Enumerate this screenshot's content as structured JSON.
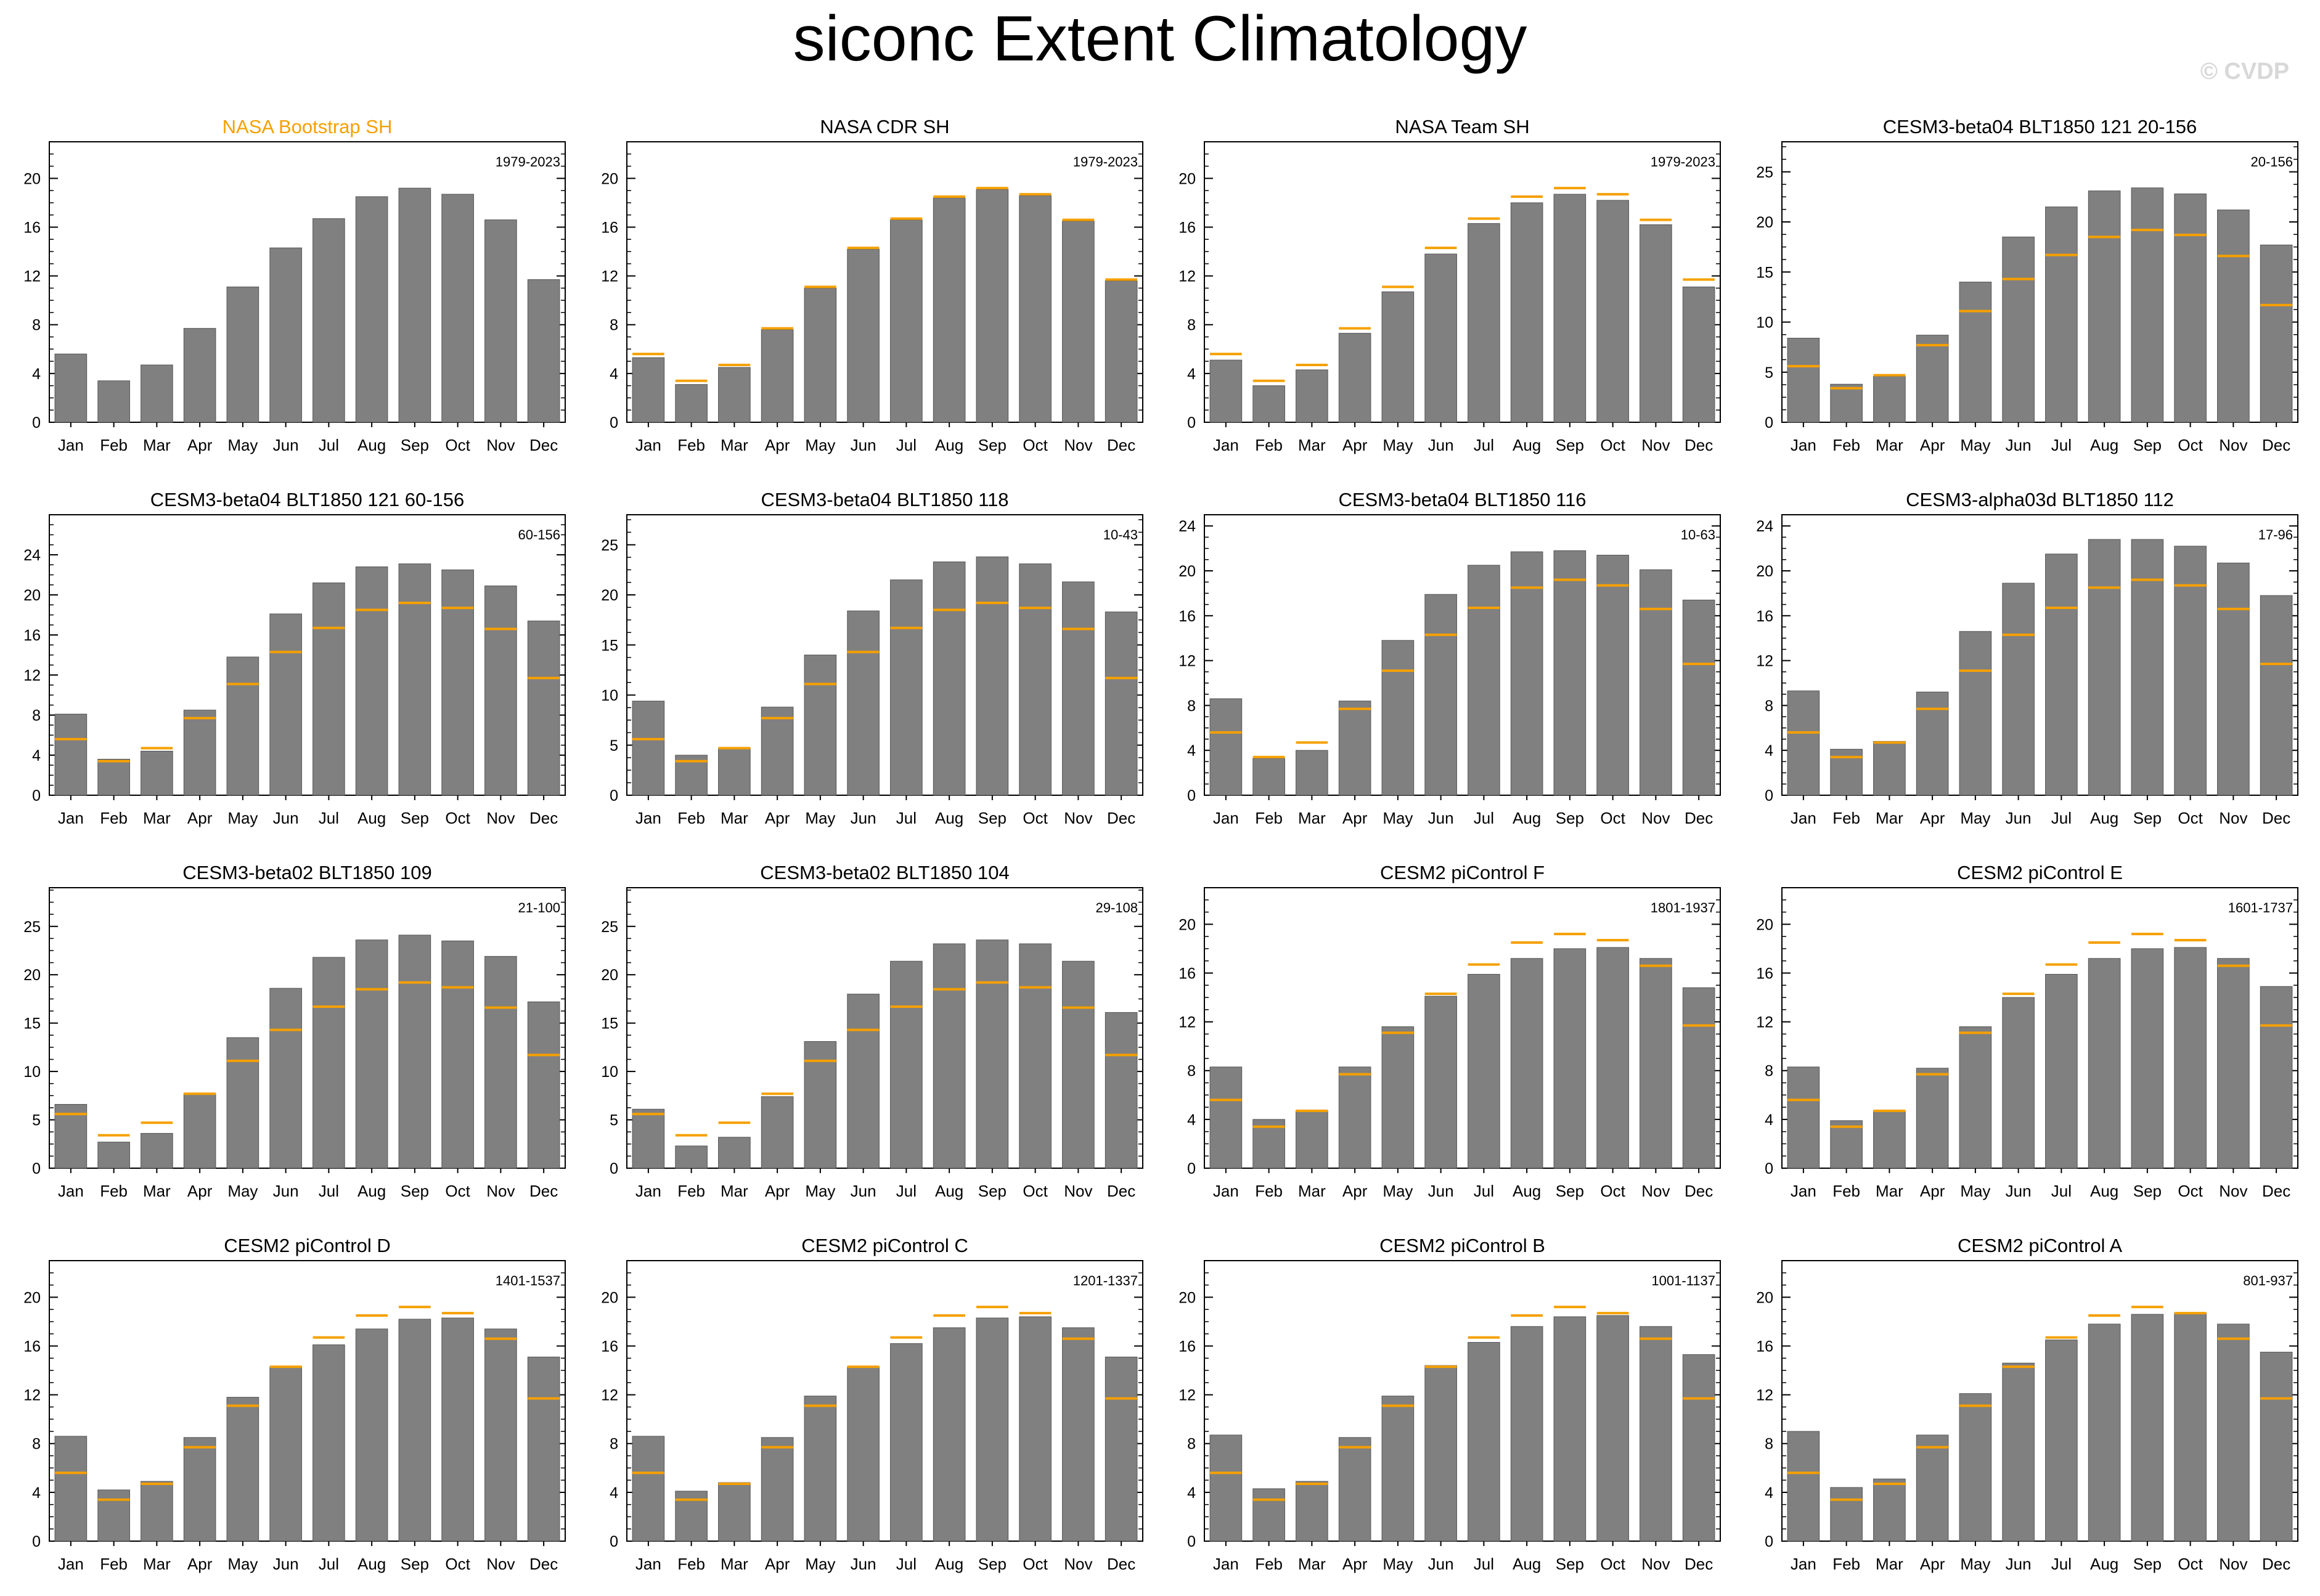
{
  "page": {
    "title": "siconc Extent Climatology",
    "watermark": "© CVDP"
  },
  "colors": {
    "bar": "#808080",
    "bar_edge": "#555555",
    "obs_line": "#f5a000",
    "obs_title": "#f5a000",
    "text": "#000000",
    "watermark": "#d8d8d8",
    "axis": "#000000"
  },
  "months": [
    "Jan",
    "Feb",
    "Mar",
    "Apr",
    "May",
    "Jun",
    "Jul",
    "Aug",
    "Sep",
    "Oct",
    "Nov",
    "Dec"
  ],
  "chart_data": [
    {
      "type": "bar",
      "title": "NASA Bootstrap SH",
      "title_color": "#f5a000",
      "years": "1979-2023",
      "categories": [
        "Jan",
        "Feb",
        "Mar",
        "Apr",
        "May",
        "Jun",
        "Jul",
        "Aug",
        "Sep",
        "Oct",
        "Nov",
        "Dec"
      ],
      "values": [
        5.6,
        3.4,
        4.7,
        7.7,
        11.1,
        14.3,
        16.7,
        18.5,
        19.2,
        18.7,
        16.6,
        11.7
      ],
      "reference": null,
      "ylim": [
        0,
        23
      ],
      "yticks": [
        0,
        4,
        8,
        12,
        16,
        20
      ]
    },
    {
      "type": "bar",
      "title": "NASA CDR SH",
      "years": "1979-2023",
      "categories": [
        "Jan",
        "Feb",
        "Mar",
        "Apr",
        "May",
        "Jun",
        "Jul",
        "Aug",
        "Sep",
        "Oct",
        "Nov",
        "Dec"
      ],
      "values": [
        5.3,
        3.1,
        4.5,
        7.6,
        11.0,
        14.2,
        16.6,
        18.4,
        19.1,
        18.6,
        16.5,
        11.6
      ],
      "reference": [
        5.6,
        3.4,
        4.7,
        7.7,
        11.1,
        14.3,
        16.7,
        18.5,
        19.2,
        18.7,
        16.6,
        11.7
      ],
      "ylim": [
        0,
        23
      ],
      "yticks": [
        0,
        4,
        8,
        12,
        16,
        20
      ]
    },
    {
      "type": "bar",
      "title": "NASA Team SH",
      "years": "1979-2023",
      "categories": [
        "Jan",
        "Feb",
        "Mar",
        "Apr",
        "May",
        "Jun",
        "Jul",
        "Aug",
        "Sep",
        "Oct",
        "Nov",
        "Dec"
      ],
      "values": [
        5.1,
        3.0,
        4.3,
        7.3,
        10.7,
        13.8,
        16.3,
        18.0,
        18.7,
        18.2,
        16.2,
        11.1
      ],
      "reference": [
        5.6,
        3.4,
        4.7,
        7.7,
        11.1,
        14.3,
        16.7,
        18.5,
        19.2,
        18.7,
        16.6,
        11.7
      ],
      "ylim": [
        0,
        23
      ],
      "yticks": [
        0,
        4,
        8,
        12,
        16,
        20
      ]
    },
    {
      "type": "bar",
      "title": "CESM3-beta04 BLT1850 121 20-156",
      "years": "20-156",
      "categories": [
        "Jan",
        "Feb",
        "Mar",
        "Apr",
        "May",
        "Jun",
        "Jul",
        "Aug",
        "Sep",
        "Oct",
        "Nov",
        "Dec"
      ],
      "values": [
        8.4,
        3.8,
        4.6,
        8.7,
        14.0,
        18.5,
        21.5,
        23.1,
        23.4,
        22.8,
        21.2,
        17.7
      ],
      "reference": [
        5.6,
        3.4,
        4.7,
        7.7,
        11.1,
        14.3,
        16.7,
        18.5,
        19.2,
        18.7,
        16.6,
        11.7
      ],
      "ylim": [
        0,
        28
      ],
      "yticks": [
        0,
        5,
        10,
        15,
        20,
        25
      ]
    },
    {
      "type": "bar",
      "title": "CESM3-beta04 BLT1850 121 60-156",
      "years": "60-156",
      "categories": [
        "Jan",
        "Feb",
        "Mar",
        "Apr",
        "May",
        "Jun",
        "Jul",
        "Aug",
        "Sep",
        "Oct",
        "Nov",
        "Dec"
      ],
      "values": [
        8.1,
        3.6,
        4.4,
        8.5,
        13.8,
        18.1,
        21.2,
        22.8,
        23.1,
        22.5,
        20.9,
        17.4
      ],
      "reference": [
        5.6,
        3.4,
        4.7,
        7.7,
        11.1,
        14.3,
        16.7,
        18.5,
        19.2,
        18.7,
        16.6,
        11.7
      ],
      "ylim": [
        0,
        28
      ],
      "yticks": [
        0,
        4,
        8,
        12,
        16,
        20,
        24
      ]
    },
    {
      "type": "bar",
      "title": "CESM3-beta04 BLT1850 118",
      "years": "10-43",
      "categories": [
        "Jan",
        "Feb",
        "Mar",
        "Apr",
        "May",
        "Jun",
        "Jul",
        "Aug",
        "Sep",
        "Oct",
        "Nov",
        "Dec"
      ],
      "values": [
        9.4,
        4.0,
        4.7,
        8.8,
        14.0,
        18.4,
        21.5,
        23.3,
        23.8,
        23.1,
        21.3,
        18.3
      ],
      "reference": [
        5.6,
        3.4,
        4.7,
        7.7,
        11.1,
        14.3,
        16.7,
        18.5,
        19.2,
        18.7,
        16.6,
        11.7
      ],
      "ylim": [
        0,
        28
      ],
      "yticks": [
        0,
        5,
        10,
        15,
        20,
        25
      ]
    },
    {
      "type": "bar",
      "title": "CESM3-beta04 BLT1850 116",
      "years": "10-63",
      "categories": [
        "Jan",
        "Feb",
        "Mar",
        "Apr",
        "May",
        "Jun",
        "Jul",
        "Aug",
        "Sep",
        "Oct",
        "Nov",
        "Dec"
      ],
      "values": [
        8.6,
        3.3,
        4.0,
        8.4,
        13.8,
        17.9,
        20.5,
        21.7,
        21.8,
        21.4,
        20.1,
        17.4
      ],
      "reference": [
        5.6,
        3.4,
        4.7,
        7.7,
        11.1,
        14.3,
        16.7,
        18.5,
        19.2,
        18.7,
        16.6,
        11.7
      ],
      "ylim": [
        0,
        25
      ],
      "yticks": [
        0,
        4,
        8,
        12,
        16,
        20,
        24
      ]
    },
    {
      "type": "bar",
      "title": "CESM3-alpha03d BLT1850 112",
      "years": "17-96",
      "categories": [
        "Jan",
        "Feb",
        "Mar",
        "Apr",
        "May",
        "Jun",
        "Jul",
        "Aug",
        "Sep",
        "Oct",
        "Nov",
        "Dec"
      ],
      "values": [
        9.3,
        4.1,
        4.8,
        9.2,
        14.6,
        18.9,
        21.5,
        22.8,
        22.8,
        22.2,
        20.7,
        17.8
      ],
      "reference": [
        5.6,
        3.4,
        4.7,
        7.7,
        11.1,
        14.3,
        16.7,
        18.5,
        19.2,
        18.7,
        16.6,
        11.7
      ],
      "ylim": [
        0,
        25
      ],
      "yticks": [
        0,
        4,
        8,
        12,
        16,
        20,
        24
      ]
    },
    {
      "type": "bar",
      "title": "CESM3-beta02 BLT1850 109",
      "years": "21-100",
      "categories": [
        "Jan",
        "Feb",
        "Mar",
        "Apr",
        "May",
        "Jun",
        "Jul",
        "Aug",
        "Sep",
        "Oct",
        "Nov",
        "Dec"
      ],
      "values": [
        6.6,
        2.7,
        3.6,
        7.7,
        13.5,
        18.6,
        21.8,
        23.6,
        24.1,
        23.5,
        21.9,
        17.2
      ],
      "reference": [
        5.6,
        3.4,
        4.7,
        7.7,
        11.1,
        14.3,
        16.7,
        18.5,
        19.2,
        18.7,
        16.6,
        11.7
      ],
      "ylim": [
        0,
        29
      ],
      "yticks": [
        0,
        5,
        10,
        15,
        20,
        25
      ]
    },
    {
      "type": "bar",
      "title": "CESM3-beta02 BLT1850 104",
      "years": "29-108",
      "categories": [
        "Jan",
        "Feb",
        "Mar",
        "Apr",
        "May",
        "Jun",
        "Jul",
        "Aug",
        "Sep",
        "Oct",
        "Nov",
        "Dec"
      ],
      "values": [
        6.1,
        2.3,
        3.2,
        7.4,
        13.1,
        18.0,
        21.4,
        23.2,
        23.6,
        23.2,
        21.4,
        16.1
      ],
      "reference": [
        5.6,
        3.4,
        4.7,
        7.7,
        11.1,
        14.3,
        16.7,
        18.5,
        19.2,
        18.7,
        16.6,
        11.7
      ],
      "ylim": [
        0,
        29
      ],
      "yticks": [
        0,
        5,
        10,
        15,
        20,
        25
      ]
    },
    {
      "type": "bar",
      "title": "CESM2 piControl F",
      "years": "1801-1937",
      "categories": [
        "Jan",
        "Feb",
        "Mar",
        "Apr",
        "May",
        "Jun",
        "Jul",
        "Aug",
        "Sep",
        "Oct",
        "Nov",
        "Dec"
      ],
      "values": [
        8.3,
        4.0,
        4.7,
        8.3,
        11.6,
        14.1,
        15.9,
        17.2,
        18.0,
        18.1,
        17.2,
        14.8
      ],
      "reference": [
        5.6,
        3.4,
        4.7,
        7.7,
        11.1,
        14.3,
        16.7,
        18.5,
        19.2,
        18.7,
        16.6,
        11.7
      ],
      "ylim": [
        0,
        23
      ],
      "yticks": [
        0,
        4,
        8,
        12,
        16,
        20
      ]
    },
    {
      "type": "bar",
      "title": "CESM2 piControl E",
      "years": "1601-1737",
      "categories": [
        "Jan",
        "Feb",
        "Mar",
        "Apr",
        "May",
        "Jun",
        "Jul",
        "Aug",
        "Sep",
        "Oct",
        "Nov",
        "Dec"
      ],
      "values": [
        8.3,
        3.9,
        4.7,
        8.2,
        11.6,
        14.0,
        15.9,
        17.2,
        18.0,
        18.1,
        17.2,
        14.9
      ],
      "reference": [
        5.6,
        3.4,
        4.7,
        7.7,
        11.1,
        14.3,
        16.7,
        18.5,
        19.2,
        18.7,
        16.6,
        11.7
      ],
      "ylim": [
        0,
        23
      ],
      "yticks": [
        0,
        4,
        8,
        12,
        16,
        20
      ]
    },
    {
      "type": "bar",
      "title": "CESM2 piControl D",
      "years": "1401-1537",
      "categories": [
        "Jan",
        "Feb",
        "Mar",
        "Apr",
        "May",
        "Jun",
        "Jul",
        "Aug",
        "Sep",
        "Oct",
        "Nov",
        "Dec"
      ],
      "values": [
        8.6,
        4.2,
        4.9,
        8.5,
        11.8,
        14.3,
        16.1,
        17.4,
        18.2,
        18.3,
        17.4,
        15.1
      ],
      "reference": [
        5.6,
        3.4,
        4.7,
        7.7,
        11.1,
        14.3,
        16.7,
        18.5,
        19.2,
        18.7,
        16.6,
        11.7
      ],
      "ylim": [
        0,
        23
      ],
      "yticks": [
        0,
        4,
        8,
        12,
        16,
        20
      ]
    },
    {
      "type": "bar",
      "title": "CESM2 piControl C",
      "years": "1201-1337",
      "categories": [
        "Jan",
        "Feb",
        "Mar",
        "Apr",
        "May",
        "Jun",
        "Jul",
        "Aug",
        "Sep",
        "Oct",
        "Nov",
        "Dec"
      ],
      "values": [
        8.6,
        4.1,
        4.8,
        8.5,
        11.9,
        14.3,
        16.2,
        17.5,
        18.3,
        18.4,
        17.5,
        15.1
      ],
      "reference": [
        5.6,
        3.4,
        4.7,
        7.7,
        11.1,
        14.3,
        16.7,
        18.5,
        19.2,
        18.7,
        16.6,
        11.7
      ],
      "ylim": [
        0,
        23
      ],
      "yticks": [
        0,
        4,
        8,
        12,
        16,
        20
      ]
    },
    {
      "type": "bar",
      "title": "CESM2 piControl B",
      "years": "1001-1137",
      "categories": [
        "Jan",
        "Feb",
        "Mar",
        "Apr",
        "May",
        "Jun",
        "Jul",
        "Aug",
        "Sep",
        "Oct",
        "Nov",
        "Dec"
      ],
      "values": [
        8.7,
        4.3,
        4.9,
        8.5,
        11.9,
        14.4,
        16.3,
        17.6,
        18.4,
        18.5,
        17.6,
        15.3
      ],
      "reference": [
        5.6,
        3.4,
        4.7,
        7.7,
        11.1,
        14.3,
        16.7,
        18.5,
        19.2,
        18.7,
        16.6,
        11.7
      ],
      "ylim": [
        0,
        23
      ],
      "yticks": [
        0,
        4,
        8,
        12,
        16,
        20
      ]
    },
    {
      "type": "bar",
      "title": "CESM2 piControl A",
      "years": "801-937",
      "categories": [
        "Jan",
        "Feb",
        "Mar",
        "Apr",
        "May",
        "Jun",
        "Jul",
        "Aug",
        "Sep",
        "Oct",
        "Nov",
        "Dec"
      ],
      "values": [
        9.0,
        4.4,
        5.1,
        8.7,
        12.1,
        14.6,
        16.5,
        17.8,
        18.6,
        18.7,
        17.8,
        15.5
      ],
      "reference": [
        5.6,
        3.4,
        4.7,
        7.7,
        11.1,
        14.3,
        16.7,
        18.5,
        19.2,
        18.7,
        16.6,
        11.7
      ],
      "ylim": [
        0,
        23
      ],
      "yticks": [
        0,
        4,
        8,
        12,
        16,
        20
      ]
    }
  ]
}
